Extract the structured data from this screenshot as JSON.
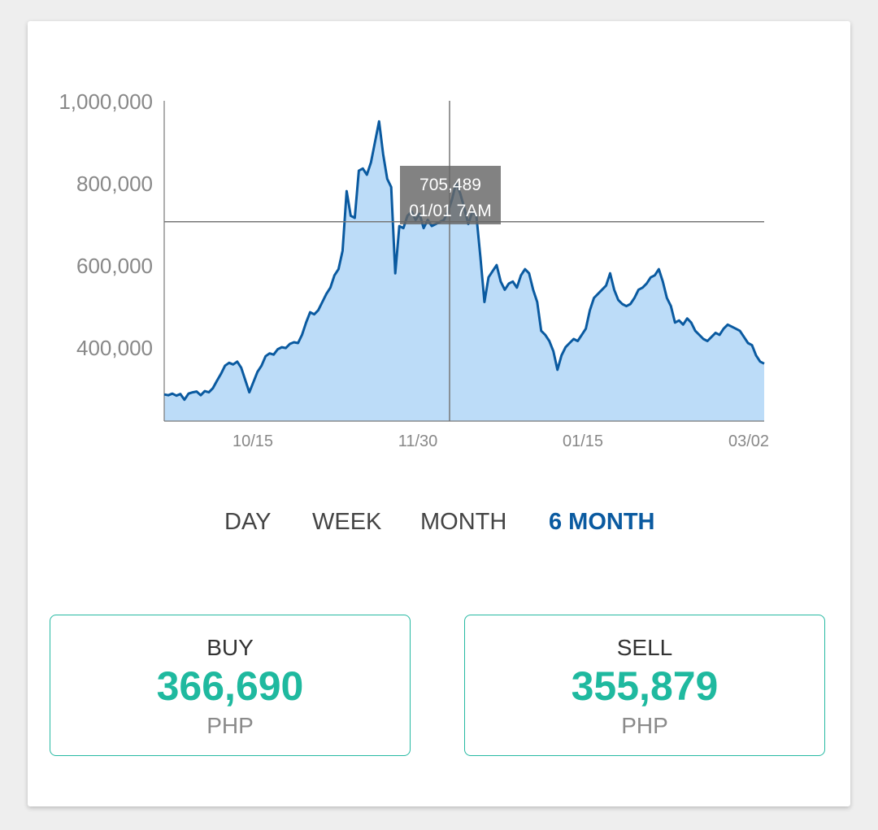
{
  "chart_data": {
    "type": "area",
    "y_ticks": [
      "1,000,000",
      "800,000",
      "600,000",
      "400,000"
    ],
    "y_tick_values": [
      1000000,
      800000,
      600000,
      400000
    ],
    "x_ticks": [
      "10/15",
      "11/30",
      "01/15",
      "03/02"
    ],
    "ylim": [
      220000,
      1000000
    ],
    "values": [
      285000,
      283000,
      287000,
      282000,
      286000,
      272000,
      287000,
      290000,
      292000,
      283000,
      293000,
      290000,
      300000,
      318000,
      335000,
      355000,
      362000,
      358000,
      365000,
      350000,
      320000,
      290000,
      315000,
      340000,
      355000,
      378000,
      385000,
      382000,
      395000,
      400000,
      398000,
      408000,
      412000,
      410000,
      430000,
      460000,
      485000,
      480000,
      490000,
      510000,
      530000,
      545000,
      575000,
      590000,
      635000,
      780000,
      720000,
      715000,
      830000,
      835000,
      820000,
      850000,
      900000,
      950000,
      870000,
      810000,
      790000,
      580000,
      695000,
      690000,
      720000,
      730000,
      710000,
      725000,
      690000,
      710000,
      695000,
      700000,
      705000,
      710000,
      730000,
      760000,
      800000,
      775000,
      740000,
      700000,
      730000,
      720000,
      620000,
      510000,
      570000,
      585000,
      600000,
      560000,
      540000,
      555000,
      560000,
      545000,
      575000,
      590000,
      580000,
      540000,
      510000,
      440000,
      430000,
      415000,
      390000,
      345000,
      380000,
      400000,
      410000,
      420000,
      415000,
      430000,
      445000,
      490000,
      520000,
      530000,
      540000,
      550000,
      580000,
      540000,
      515000,
      505000,
      500000,
      505000,
      520000,
      540000,
      545000,
      555000,
      570000,
      575000,
      590000,
      560000,
      520000,
      500000,
      460000,
      465000,
      455000,
      470000,
      460000,
      440000,
      430000,
      420000,
      415000,
      425000,
      435000,
      430000,
      445000,
      455000,
      450000,
      445000,
      440000,
      425000,
      410000,
      405000,
      380000,
      365000,
      360000
    ],
    "cursor": {
      "value_label": "705,489",
      "date_label": "01/01 7AM",
      "value": 705489
    },
    "grid": false
  },
  "range_tabs": [
    "DAY",
    "WEEK",
    "MONTH",
    "6 MONTH"
  ],
  "active_tab": "6 MONTH",
  "buy": {
    "label": "BUY",
    "value": "366,690",
    "currency": "PHP"
  },
  "sell": {
    "label": "SELL",
    "value": "355,879",
    "currency": "PHP"
  },
  "colors": {
    "line": "#0a5aa0",
    "fill": "#bcdcf8",
    "accent": "#1fb99f",
    "active_tab": "#0a5aa0"
  }
}
